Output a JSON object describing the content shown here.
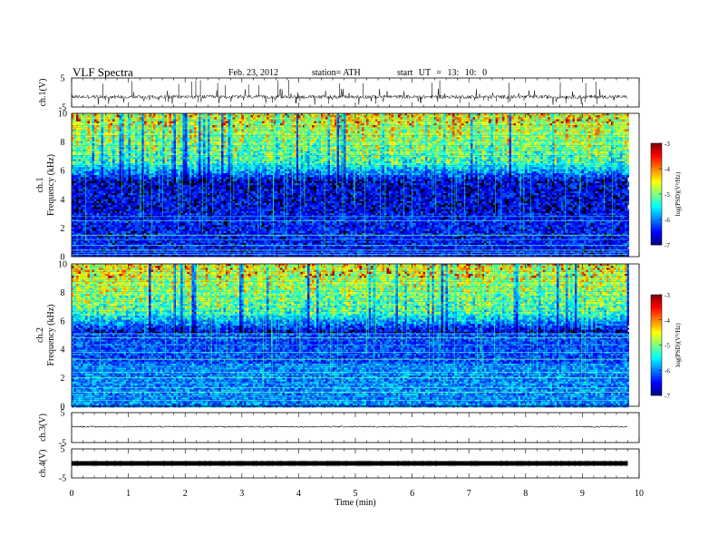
{
  "header": {
    "title": "VLF  Spectra",
    "date": "Feb. 23, 2012",
    "station": "station= ATH",
    "start": "start  UT =   13: 10: 0"
  },
  "chart_data": [
    {
      "type": "line",
      "name": "channel-1-waveform",
      "ylabel": "ch.1(V)",
      "yticks": [
        "5",
        "-5"
      ],
      "ylim": [
        -5,
        5
      ],
      "xlim": [
        0,
        10
      ],
      "baseline": -1.5,
      "data_end_min": 9.8
    },
    {
      "type": "heatmap",
      "name": "channel-1-spectrogram",
      "ylabel_lines": [
        "ch.1",
        "Frequency  (kHz)"
      ],
      "ylim": [
        0,
        10
      ],
      "yticks": [
        "0",
        "2",
        "4",
        "6",
        "8",
        "10"
      ],
      "xlim": [
        0,
        10
      ],
      "data_end_min": 9.8,
      "colorbar": {
        "label": "log(PSD)(V²/Hz)",
        "range": [
          -7,
          -3
        ],
        "ticks": [
          "-3",
          "-4",
          "-5",
          "-6",
          "-7"
        ]
      }
    },
    {
      "type": "heatmap",
      "name": "channel-2-spectrogram",
      "ylabel_lines": [
        "ch.2",
        "Frequency  (kHz)"
      ],
      "ylim": [
        0,
        10
      ],
      "yticks": [
        "0",
        "2",
        "4",
        "6",
        "8",
        "10"
      ],
      "xlim": [
        0,
        10
      ],
      "data_end_min": 9.8,
      "colorbar": {
        "label": "log(PSD)(V²/Hz)",
        "range": [
          -7,
          -3
        ],
        "ticks": [
          "-3",
          "-4",
          "-5",
          "-6",
          "-7"
        ]
      }
    },
    {
      "type": "line",
      "name": "channel-3-waveform",
      "ylabel": "ch.3(V)",
      "yticks": [
        "5",
        "-5"
      ],
      "ylim": [
        -5,
        5
      ],
      "xlim": [
        0,
        10
      ],
      "baseline": 0.3,
      "data_end_min": 9.8
    },
    {
      "type": "line",
      "name": "channel-4-waveform",
      "ylabel": "ch.4(V)",
      "yticks": [
        "5",
        "-5"
      ],
      "ylim": [
        -5,
        5
      ],
      "xlim": [
        0,
        10
      ],
      "baseline": 0,
      "data_end_min": 9.8,
      "xlabel": "Time  (min)",
      "xticks": [
        "0",
        "1",
        "2",
        "3",
        "4",
        "5",
        "6",
        "7",
        "8",
        "9",
        "10"
      ]
    }
  ]
}
